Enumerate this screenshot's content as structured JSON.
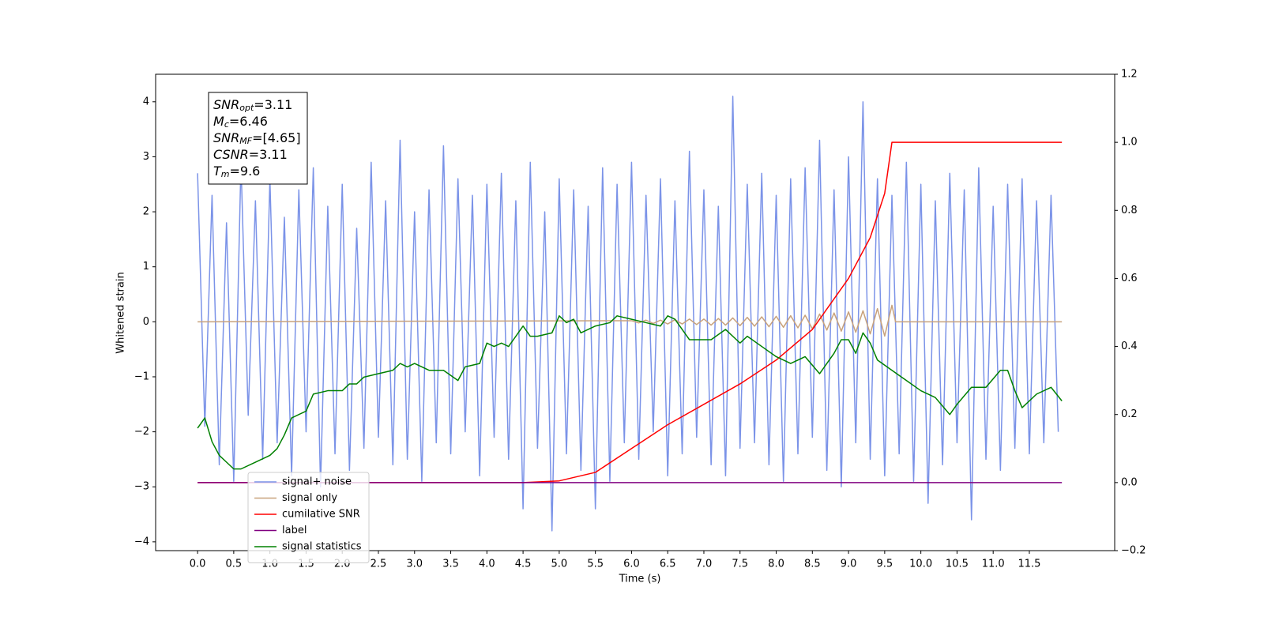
{
  "chart_data": {
    "type": "line",
    "xlabel": "Time (s)",
    "ylabel": "Whitened strain",
    "xlim": [
      -0.58,
      12.68
    ],
    "ylim": [
      -4.16,
      4.5
    ],
    "y2lim": [
      -0.2,
      1.2
    ],
    "xticks": [
      {
        "value": 0,
        "label": "0.0"
      },
      0.5,
      {
        "value": 1,
        "label": "1.0"
      },
      1.5,
      {
        "value": 2,
        "label": "2.0"
      },
      2.5,
      {
        "value": 3,
        "label": "3.0"
      },
      3.5,
      {
        "value": 4,
        "label": "4.0"
      },
      4.5,
      {
        "value": 5,
        "label": "5.0"
      },
      5.5,
      {
        "value": 6,
        "label": "6.0"
      },
      6.5,
      {
        "value": 7,
        "label": "7.0"
      },
      7.5,
      {
        "value": 8,
        "label": "8.0"
      },
      8.5,
      {
        "value": 9,
        "label": "9.0"
      },
      9.5,
      {
        "value": 10,
        "label": "10.0"
      },
      10.5,
      {
        "value": 11,
        "label": "11.0"
      },
      11.5
    ],
    "yticks": [
      {
        "value": -4,
        "label": "−4"
      },
      {
        "value": -3,
        "label": "−3"
      },
      {
        "value": -2,
        "label": "−2"
      },
      {
        "value": -1,
        "label": "−1"
      },
      0,
      1,
      2,
      3,
      4
    ],
    "y2ticks": [
      {
        "value": -0.2,
        "label": "−0.2"
      },
      {
        "value": 0,
        "label": "0.0"
      },
      0.2,
      0.4,
      0.6,
      0.8,
      {
        "value": 1,
        "label": "1.0"
      },
      1.2
    ],
    "legend": "lower left",
    "annotation": [
      {
        "symbol": "SNR",
        "subscript": "opt",
        "text": "=3.11"
      },
      {
        "symbol": "M",
        "subscript": "c",
        "text": "=6.46"
      },
      {
        "symbol": "SNR",
        "subscript": "MF",
        "text": "=[4.65]"
      },
      {
        "symbol": "CSNR",
        "text": "=3.11"
      },
      {
        "symbol": "T",
        "subscript": "m",
        "text": "=9.6"
      }
    ],
    "series": [
      {
        "name": "signal+ noise",
        "color": "#7b93e8",
        "x": [
          0.0,
          0.1,
          0.2,
          0.3,
          0.4,
          0.5,
          0.6,
          0.7,
          0.8,
          0.9,
          1.0,
          1.1,
          1.2,
          1.3,
          1.4,
          1.5,
          1.6,
          1.7,
          1.8,
          1.9,
          2.0,
          2.1,
          2.2,
          2.3,
          2.4,
          2.5,
          2.6,
          2.7,
          2.8,
          2.9,
          3.0,
          3.1,
          3.2,
          3.3,
          3.4,
          3.5,
          3.6,
          3.7,
          3.8,
          3.9,
          4.0,
          4.1,
          4.2,
          4.3,
          4.4,
          4.5,
          4.6,
          4.7,
          4.8,
          4.9,
          5.0,
          5.1,
          5.2,
          5.3,
          5.4,
          5.5,
          5.6,
          5.7,
          5.8,
          5.9,
          6.0,
          6.1,
          6.2,
          6.3,
          6.4,
          6.5,
          6.6,
          6.7,
          6.8,
          6.9,
          7.0,
          7.1,
          7.2,
          7.3,
          7.4,
          7.5,
          7.6,
          7.7,
          7.8,
          7.9,
          8.0,
          8.1,
          8.2,
          8.3,
          8.4,
          8.5,
          8.6,
          8.7,
          8.8,
          8.9,
          9.0,
          9.1,
          9.2,
          9.3,
          9.4,
          9.5,
          9.6,
          9.7,
          9.8,
          9.9,
          10.0,
          10.1,
          10.2,
          10.3,
          10.4,
          10.5,
          10.6,
          10.7,
          10.8,
          10.9,
          11.0,
          11.1,
          11.2,
          11.3,
          11.4,
          11.5,
          11.6,
          11.7,
          11.8,
          11.9
        ],
        "values": [
          2.7,
          -1.9,
          2.3,
          -2.6,
          1.8,
          -2.9,
          2.9,
          -1.7,
          2.2,
          -2.5,
          2.6,
          -2.2,
          1.9,
          -2.8,
          2.4,
          -2.0,
          2.8,
          -3.0,
          2.1,
          -2.4,
          2.5,
          -2.7,
          1.7,
          -2.3,
          2.9,
          -2.1,
          2.2,
          -2.6,
          3.3,
          -2.5,
          2.0,
          -2.9,
          2.4,
          -2.2,
          3.2,
          -2.4,
          2.6,
          -2.0,
          2.3,
          -2.8,
          2.5,
          -2.1,
          2.7,
          -2.5,
          2.2,
          -3.4,
          2.9,
          -2.3,
          2.0,
          -3.8,
          2.6,
          -2.4,
          2.4,
          -2.7,
          2.1,
          -3.4,
          2.8,
          -2.9,
          2.5,
          -2.2,
          2.9,
          -2.5,
          2.3,
          -2.0,
          2.6,
          -2.8,
          2.2,
          -2.4,
          3.1,
          -2.1,
          2.4,
          -2.6,
          2.1,
          -2.8,
          4.1,
          -2.3,
          2.5,
          -2.2,
          2.7,
          -2.6,
          2.3,
          -2.9,
          2.6,
          -2.4,
          2.8,
          -2.1,
          3.3,
          -2.7,
          2.4,
          -3.0,
          3.0,
          -2.2,
          4.0,
          -2.5,
          2.6,
          -2.8,
          2.3,
          -2.4,
          2.9,
          -2.9,
          2.5,
          -3.3,
          2.2,
          -2.6,
          2.7,
          -2.2,
          2.4,
          -3.6,
          2.8,
          -2.5,
          2.1,
          -2.7,
          2.5,
          -2.3,
          2.6,
          -2.4,
          2.2,
          -2.2,
          2.3,
          -2.0
        ]
      },
      {
        "name": "signal only",
        "color": "#c8a27c",
        "x": [
          0.0,
          6.0,
          6.1,
          6.2,
          6.3,
          6.4,
          6.5,
          6.6,
          6.7,
          6.8,
          6.9,
          7.0,
          7.1,
          7.2,
          7.3,
          7.4,
          7.5,
          7.6,
          7.7,
          7.8,
          7.9,
          8.0,
          8.1,
          8.2,
          8.3,
          8.4,
          8.5,
          8.6,
          8.7,
          8.8,
          8.9,
          9.0,
          9.1,
          9.2,
          9.3,
          9.4,
          9.5,
          9.6,
          9.65,
          11.95
        ],
        "values": [
          0,
          0.02,
          -0.02,
          0.03,
          -0.03,
          0.03,
          -0.04,
          0.04,
          -0.04,
          0.05,
          -0.05,
          0.05,
          -0.06,
          0.06,
          -0.06,
          0.07,
          -0.07,
          0.08,
          -0.08,
          0.09,
          -0.09,
          0.1,
          -0.1,
          0.11,
          -0.11,
          0.12,
          -0.13,
          0.14,
          -0.15,
          0.16,
          -0.17,
          0.18,
          -0.19,
          0.2,
          -0.22,
          0.24,
          -0.26,
          0.3,
          0,
          0
        ]
      },
      {
        "name": "cumilative SNR",
        "color": "#ff0000",
        "axis": "y2",
        "x": [
          0,
          4.5,
          5.0,
          5.5,
          6.0,
          6.5,
          7.0,
          7.5,
          8.0,
          8.5,
          9.0,
          9.3,
          9.5,
          9.6,
          11.95
        ],
        "values": [
          0,
          0,
          0.005,
          0.03,
          0.1,
          0.17,
          0.23,
          0.29,
          0.36,
          0.45,
          0.6,
          0.72,
          0.85,
          1.0,
          1.0
        ]
      },
      {
        "name": "label",
        "color": "#800080",
        "axis": "y2",
        "x": [
          0,
          11.95
        ],
        "values": [
          0,
          0
        ]
      },
      {
        "name": "signal statistics",
        "color": "#008000",
        "axis": "y2",
        "x": [
          0.0,
          0.1,
          0.2,
          0.3,
          0.4,
          0.5,
          0.6,
          0.8,
          1.0,
          1.1,
          1.2,
          1.3,
          1.5,
          1.6,
          1.8,
          2.0,
          2.1,
          2.2,
          2.3,
          2.5,
          2.7,
          2.8,
          2.9,
          3.0,
          3.2,
          3.4,
          3.6,
          3.7,
          3.9,
          4.0,
          4.1,
          4.2,
          4.3,
          4.4,
          4.5,
          4.6,
          4.7,
          4.9,
          5.0,
          5.1,
          5.2,
          5.3,
          5.5,
          5.7,
          5.8,
          6.0,
          6.2,
          6.4,
          6.5,
          6.6,
          6.8,
          6.9,
          7.1,
          7.3,
          7.5,
          7.6,
          7.8,
          8.0,
          8.2,
          8.4,
          8.6,
          8.8,
          8.9,
          9.0,
          9.1,
          9.2,
          9.3,
          9.4,
          9.6,
          9.8,
          10.0,
          10.2,
          10.4,
          10.5,
          10.7,
          10.9,
          11.1,
          11.2,
          11.3,
          11.4,
          11.6,
          11.8,
          11.95
        ],
        "values": [
          0.16,
          0.19,
          0.12,
          0.08,
          0.06,
          0.04,
          0.04,
          0.06,
          0.08,
          0.1,
          0.14,
          0.19,
          0.21,
          0.26,
          0.27,
          0.27,
          0.29,
          0.29,
          0.31,
          0.32,
          0.33,
          0.35,
          0.34,
          0.35,
          0.33,
          0.33,
          0.3,
          0.34,
          0.35,
          0.41,
          0.4,
          0.41,
          0.4,
          0.43,
          0.46,
          0.43,
          0.43,
          0.44,
          0.49,
          0.47,
          0.48,
          0.44,
          0.46,
          0.47,
          0.49,
          0.48,
          0.47,
          0.46,
          0.49,
          0.48,
          0.42,
          0.42,
          0.42,
          0.45,
          0.41,
          0.43,
          0.4,
          0.37,
          0.35,
          0.37,
          0.32,
          0.38,
          0.42,
          0.42,
          0.38,
          0.44,
          0.41,
          0.36,
          0.33,
          0.3,
          0.27,
          0.25,
          0.2,
          0.23,
          0.28,
          0.28,
          0.33,
          0.33,
          0.27,
          0.22,
          0.26,
          0.28,
          0.24
        ]
      }
    ]
  }
}
